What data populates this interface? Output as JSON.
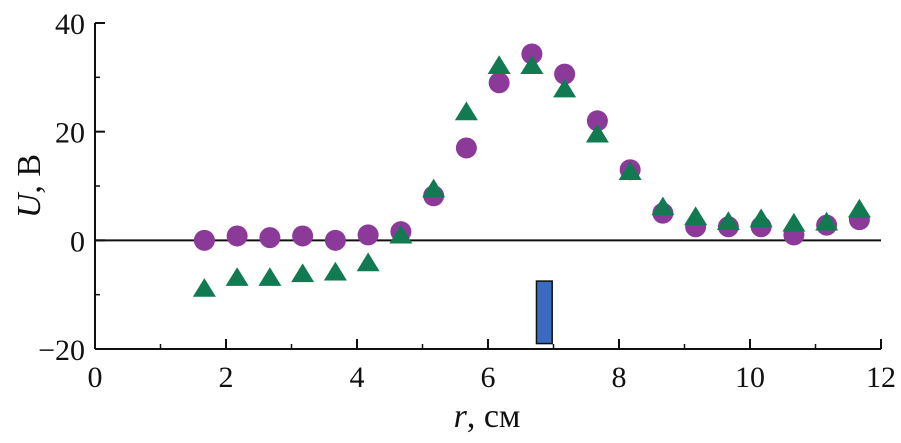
{
  "chart_data": {
    "type": "scatter",
    "xlim": [
      0,
      12
    ],
    "ylim": [
      -20,
      40
    ],
    "xticks": [
      0,
      2,
      4,
      6,
      8,
      10,
      12
    ],
    "yticks": [
      -20,
      0,
      20,
      40
    ],
    "xtick_labels": [
      "0",
      "2",
      "4",
      "6",
      "8",
      "10",
      "12"
    ],
    "ytick_labels": [
      "−20",
      "0",
      "20",
      "40"
    ],
    "xlabel_var": "r",
    "xlabel_unit": ", см",
    "ylabel_var": "U",
    "ylabel_unit": ", В",
    "zero_line": true,
    "grid": false,
    "series": [
      {
        "marker": "circle",
        "color": "#8B3A9A",
        "x": [
          1.67,
          2.17,
          2.67,
          3.17,
          3.67,
          4.17,
          4.67,
          5.17,
          5.67,
          6.17,
          6.67,
          7.17,
          7.67,
          8.17,
          8.67,
          9.17,
          9.67,
          10.17,
          10.67,
          11.17,
          11.67
        ],
        "y": [
          0,
          0.8,
          0.5,
          0.8,
          0,
          1,
          1.6,
          8.2,
          17,
          29,
          34.3,
          30.6,
          22,
          13,
          5,
          2.5,
          2.5,
          2.5,
          1,
          2.8,
          3.8
        ]
      },
      {
        "marker": "triangle",
        "color": "#117A50",
        "x": [
          1.67,
          2.17,
          2.67,
          3.17,
          3.67,
          4.17,
          4.67,
          5.17,
          5.67,
          6.17,
          6.67,
          7.17,
          7.67,
          8.17,
          8.67,
          9.17,
          9.67,
          10.17,
          10.67,
          11.17,
          11.67
        ],
        "y": [
          -9,
          -7,
          -7,
          -6.3,
          -6,
          -4.3,
          0.8,
          9.3,
          23.5,
          32,
          32,
          27.7,
          19.4,
          12.5,
          6,
          4.2,
          3.3,
          3.8,
          3,
          3.2,
          5.6
        ]
      }
    ],
    "annotations": [
      {
        "shape": "rectangle",
        "color": "#3A6BC0",
        "x0": 6.74,
        "x1": 6.98,
        "y0": -19,
        "y1": -7.5
      }
    ]
  }
}
